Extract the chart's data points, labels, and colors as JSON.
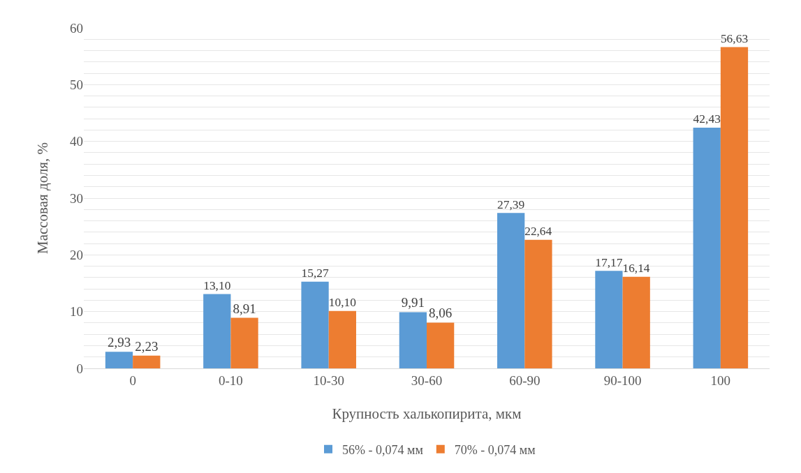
{
  "chart_data": {
    "type": "bar",
    "xlabel": "Крупность халькопирита, мкм",
    "ylabel": "Массовая доля, %",
    "categories": [
      "0",
      "0-10",
      "10-30",
      "30-60",
      "60-90",
      "90-100",
      "100"
    ],
    "series": [
      {
        "name": "56% - 0,074 мм",
        "color": "#5b9bd5",
        "values": [
          2.93,
          13.1,
          15.27,
          9.91,
          27.39,
          17.17,
          42.43
        ],
        "value_labels": [
          "2,93",
          "13,10",
          "15,27",
          "9,91",
          "27,39",
          "17,17",
          "42,43"
        ]
      },
      {
        "name": "70% - 0,074 мм",
        "color": "#ed7d31",
        "values": [
          2.23,
          8.91,
          10.1,
          8.06,
          22.64,
          16.14,
          56.63
        ],
        "value_labels": [
          "2,23",
          "8,91",
          "10,10",
          "8,06",
          "22,64",
          "16,14",
          "56,63"
        ]
      }
    ],
    "ylim": [
      0,
      60
    ],
    "yticks": [
      0,
      {
        "value": 2,
        "label": null
      },
      {
        "value": 4,
        "label": null
      },
      {
        "value": 6,
        "label": null
      },
      {
        "value": 8,
        "label": null
      },
      10,
      {
        "value": 12,
        "label": null
      },
      {
        "value": 14,
        "label": null
      },
      {
        "value": 16,
        "label": null
      },
      {
        "value": 18,
        "label": null
      },
      20,
      {
        "value": 22,
        "label": null
      },
      {
        "value": 24,
        "label": null
      },
      {
        "value": 26,
        "label": null
      },
      {
        "value": 28,
        "label": null
      },
      30,
      {
        "value": 32,
        "label": null
      },
      {
        "value": 34,
        "label": null
      },
      {
        "value": 36,
        "label": null
      },
      {
        "value": 38,
        "label": null
      },
      40,
      {
        "value": 42,
        "label": null
      },
      {
        "value": 44,
        "label": null
      },
      {
        "value": 46,
        "label": null
      },
      {
        "value": 48,
        "label": null
      },
      50,
      {
        "value": 52,
        "label": null
      },
      {
        "value": 54,
        "label": null
      },
      {
        "value": 56,
        "label": null
      },
      {
        "value": 58,
        "label": null
      },
      60
    ],
    "grid": "y",
    "legend": "bottom"
  }
}
